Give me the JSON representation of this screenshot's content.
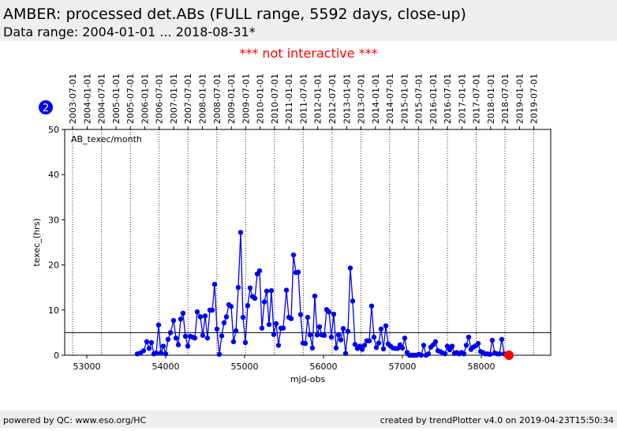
{
  "header": {
    "title": "AMBER: processed det.ABs (FULL range, 5592 days, close-up)",
    "subtitle": "Data range: 2004-01-01 ... 2018-08-31*"
  },
  "notice": "*** not interactive ***",
  "badge": "2",
  "footer": {
    "left": "powered by QC: www.eso.org/HC",
    "right": "created by trendPlotter v4.0 on 2019-04-23T15:50:34"
  },
  "chart_data": {
    "type": "line",
    "xlabel": "mjd-obs",
    "ylabel": "texec_(hrs)",
    "xlim": [
      52720,
      58880
    ],
    "ylim": [
      0,
      50
    ],
    "xticks": [
      53000,
      54000,
      55000,
      56000,
      57000,
      58000
    ],
    "yticks": [
      0,
      10,
      20,
      30,
      40,
      50
    ],
    "top_xticks": [
      {
        "value": 52821,
        "label": "2003-07-01"
      },
      {
        "value": 53005,
        "label": "2004-01-01"
      },
      {
        "value": 53187,
        "label": "2004-07-01"
      },
      {
        "value": 53371,
        "label": "2005-01-01"
      },
      {
        "value": 53552,
        "label": "2005-07-01"
      },
      {
        "value": 53736,
        "label": "2006-01-01"
      },
      {
        "value": 53917,
        "label": "2006-07-01"
      },
      {
        "value": 54101,
        "label": "2007-01-01"
      },
      {
        "value": 54282,
        "label": "2007-07-01"
      },
      {
        "value": 54466,
        "label": "2008-01-01"
      },
      {
        "value": 54648,
        "label": "2008-07-01"
      },
      {
        "value": 54832,
        "label": "2009-01-01"
      },
      {
        "value": 55013,
        "label": "2009-07-01"
      },
      {
        "value": 55197,
        "label": "2010-01-01"
      },
      {
        "value": 55378,
        "label": "2010-07-01"
      },
      {
        "value": 55562,
        "label": "2011-01-01"
      },
      {
        "value": 55743,
        "label": "2011-07-01"
      },
      {
        "value": 55927,
        "label": "2012-01-01"
      },
      {
        "value": 56109,
        "label": "2012-07-01"
      },
      {
        "value": 56293,
        "label": "2013-01-01"
      },
      {
        "value": 56474,
        "label": "2013-07-01"
      },
      {
        "value": 56658,
        "label": "2014-01-01"
      },
      {
        "value": 56839,
        "label": "2014-07-01"
      },
      {
        "value": 57023,
        "label": "2015-01-01"
      },
      {
        "value": 57204,
        "label": "2015-07-01"
      },
      {
        "value": 57388,
        "label": "2016-01-01"
      },
      {
        "value": 57570,
        "label": "2016-07-01"
      },
      {
        "value": 57754,
        "label": "2017-01-01"
      },
      {
        "value": 57935,
        "label": "2017-07-01"
      },
      {
        "value": 58119,
        "label": "2018-01-01"
      },
      {
        "value": 58300,
        "label": "2018-07-01"
      },
      {
        "value": 58484,
        "label": "2019-01-01"
      },
      {
        "value": 58665,
        "label": "2019-07-01"
      }
    ],
    "hlines": [
      5
    ],
    "x": [
      53640,
      53680,
      53720,
      53760,
      53790,
      53820,
      53850,
      53880,
      53910,
      53940,
      53970,
      54000,
      54030,
      54060,
      54100,
      54130,
      54160,
      54190,
      54220,
      54250,
      54280,
      54310,
      54340,
      54370,
      54400,
      54440,
      54470,
      54500,
      54530,
      54560,
      54590,
      54620,
      54650,
      54680,
      54710,
      54740,
      54770,
      54800,
      54830,
      54860,
      54890,
      54920,
      54950,
      54980,
      55010,
      55040,
      55070,
      55100,
      55130,
      55160,
      55190,
      55220,
      55250,
      55280,
      55310,
      55340,
      55370,
      55400,
      55430,
      55460,
      55490,
      55530,
      55560,
      55590,
      55620,
      55650,
      55680,
      55710,
      55740,
      55770,
      55800,
      55830,
      55860,
      55890,
      55920,
      55950,
      55980,
      56010,
      56040,
      56070,
      56100,
      56130,
      56160,
      56190,
      56220,
      56250,
      56280,
      56310,
      56340,
      56370,
      56400,
      56430,
      56460,
      56490,
      56520,
      56550,
      56580,
      56610,
      56640,
      56670,
      56700,
      56730,
      56760,
      56790,
      56820,
      56850,
      56880,
      56910,
      56940,
      56970,
      57000,
      57030,
      57060,
      57090,
      57120,
      57150,
      57180,
      57210,
      57240,
      57270,
      57300,
      57330,
      57360,
      57390,
      57420,
      57450,
      57480,
      57510,
      57540,
      57570,
      57600,
      57630,
      57660,
      57690,
      57720,
      57750,
      57780,
      57810,
      57840,
      57870,
      57900,
      57930,
      57960,
      57990,
      58020,
      58050,
      58080,
      58110,
      58140,
      58170,
      58200,
      58230,
      58260,
      58290,
      58320,
      58350
    ],
    "series": [
      {
        "name": "AB_texec/month",
        "color": "#0000ee",
        "values": [
          0.3,
          0.5,
          1,
          3,
          1.5,
          2.8,
          0.3,
          0.5,
          6.7,
          0.5,
          2,
          0.3,
          3.5,
          5,
          7.7,
          3.8,
          2.3,
          8,
          9.3,
          4.2,
          2,
          4.2,
          4,
          3.8,
          9.6,
          8.5,
          4.4,
          8.7,
          3.8,
          10,
          10,
          15.7,
          5.8,
          0.2,
          4.3,
          7.2,
          8.5,
          11.2,
          10.8,
          3,
          5.4,
          15,
          27.2,
          8.4,
          2.8,
          11,
          14.9,
          13,
          12.6,
          18,
          18.7,
          6,
          11.8,
          14.2,
          6.8,
          14.3,
          4.6,
          7,
          2.2,
          6,
          6,
          14.4,
          8.4,
          8.1,
          22.2,
          18.3,
          18.4,
          9,
          2.7,
          2.6,
          8.4,
          4.5,
          1.6,
          13.1,
          4.5,
          6.3,
          4.5,
          4.4,
          10.1,
          9.6,
          4,
          9.1,
          1.6,
          4.5,
          3.4,
          5.9,
          0.4,
          5.3,
          19.3,
          12,
          2.4,
          1.5,
          2,
          1.3,
          2.2,
          3.2,
          3.2,
          10.9,
          4,
          1.7,
          2.7,
          5.8,
          1.4,
          6.5,
          2.5,
          2,
          1.6,
          1.5,
          1.5,
          2.3,
          1.6,
          3.8,
          0.6,
          0,
          0,
          0,
          0,
          0.2,
          0,
          2.2,
          0,
          0.3,
          1.8,
          2.3,
          3,
          1,
          0.8,
          0.5,
          0.3,
          2,
          1.2,
          2,
          0.4,
          0.6,
          0.3,
          0.6,
          0.3,
          2.2,
          4,
          1.3,
          1.8,
          2.1,
          2.6,
          0.8,
          0.6,
          0.3,
          0.3,
          0.2,
          3.3,
          0.5,
          0.3,
          0.3,
          3.5,
          0.3,
          0.2,
          0
        ]
      }
    ],
    "last_point_color": "#ff0000"
  }
}
